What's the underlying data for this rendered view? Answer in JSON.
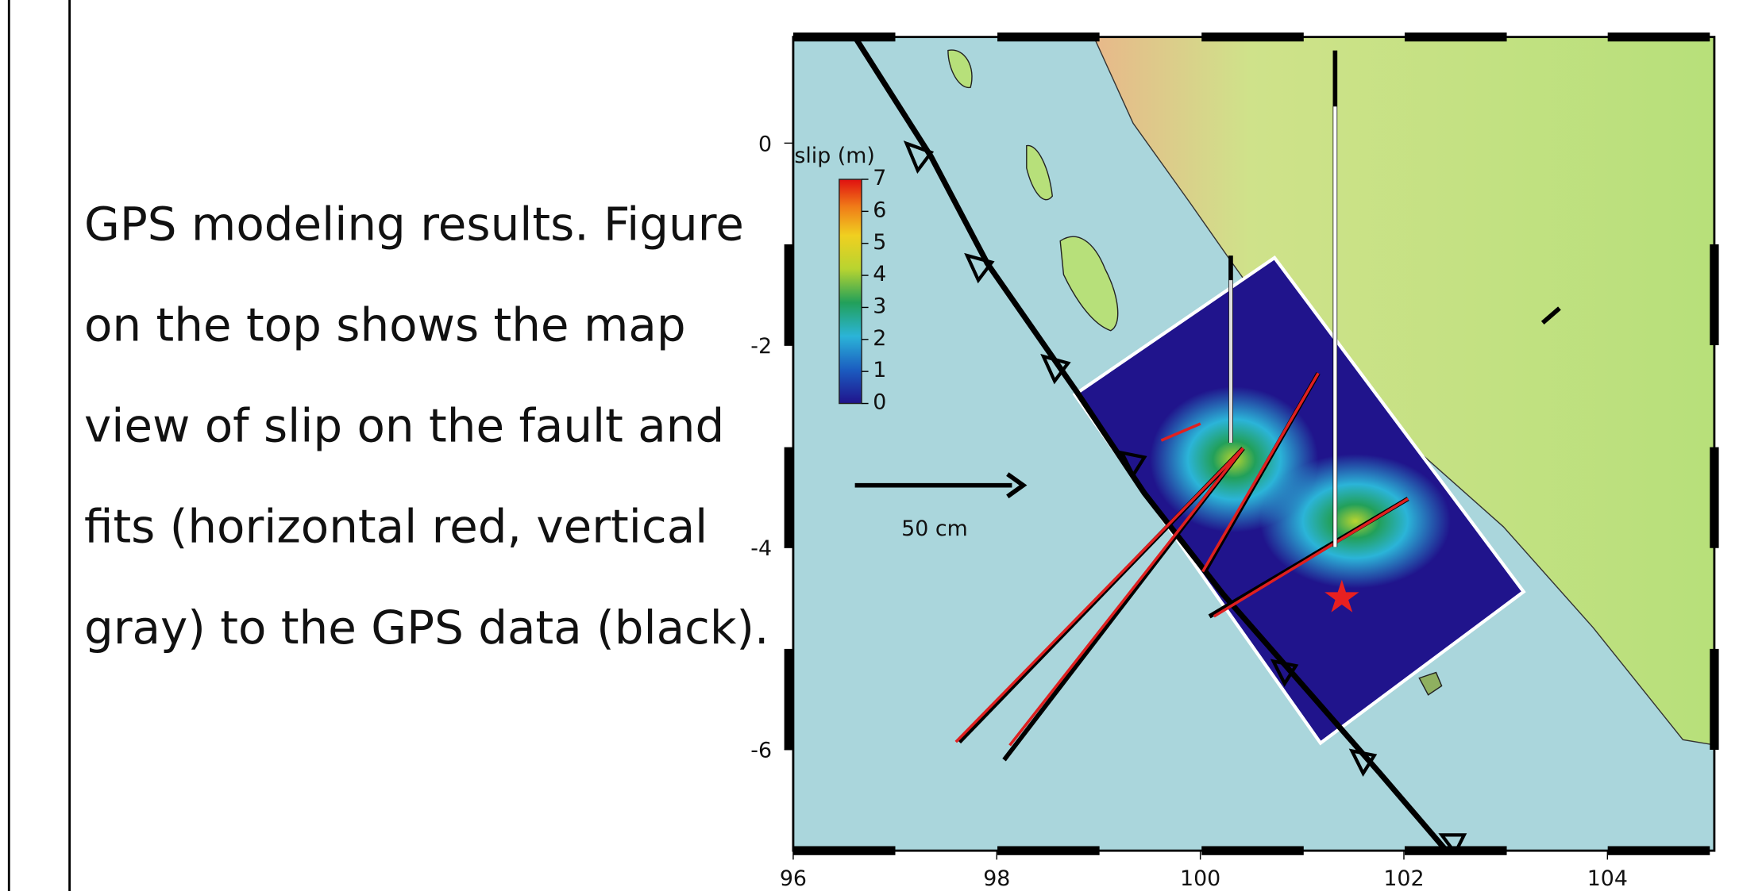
{
  "caption": {
    "lines": [
      "GPS modeling results.  Figure",
      "on the top shows the map",
      "view of slip on the fault and",
      "fits (horizontal red, vertical",
      "gray) to the  GPS data (black)."
    ]
  },
  "map": {
    "xlim": [
      96,
      105.05
    ],
    "ylim": [
      -7,
      1.05
    ],
    "xticks": [
      96,
      98,
      100,
      102,
      104
    ],
    "yticks": [
      0,
      -2,
      -4,
      -6
    ],
    "colorbar": {
      "title": "slip (m)",
      "clim": [
        0,
        7
      ],
      "ticks": [
        0,
        1,
        2,
        3,
        4,
        5,
        6,
        7
      ]
    },
    "scale_label": "50 cm"
  }
}
